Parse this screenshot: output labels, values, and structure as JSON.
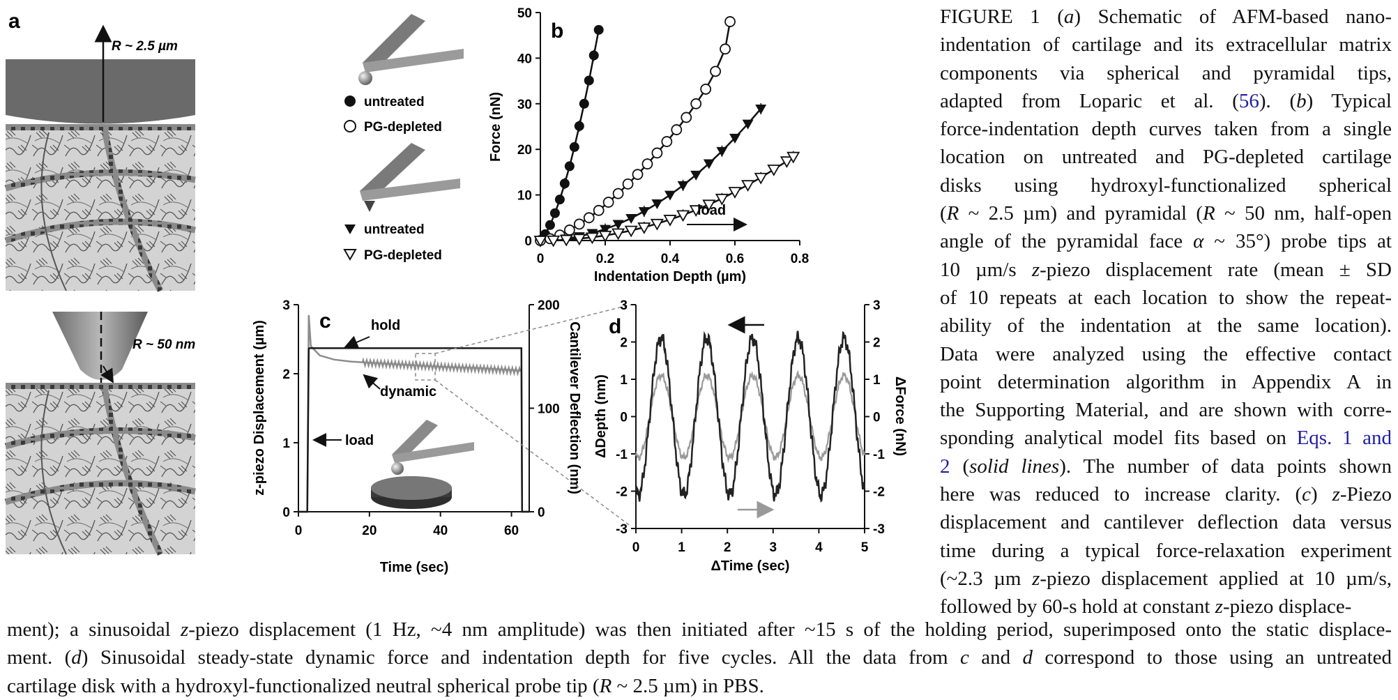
{
  "panels": {
    "a": {
      "label": "a",
      "top_radius": "R ~ 2.5 µm",
      "bottom_radius": "R ~ 50 nm"
    },
    "b": {
      "label": "b",
      "legend": [
        {
          "symbol": "filled-circle",
          "text": "untreated"
        },
        {
          "symbol": "open-circle",
          "text": "PG-depleted"
        },
        {
          "symbol": "filled-triangle",
          "text": "untreated"
        },
        {
          "symbol": "open-triangle",
          "text": "PG-depleted"
        }
      ],
      "annotation": "load"
    },
    "c": {
      "label": "c",
      "annotations": {
        "hold": "hold",
        "dynamic": "dynamic",
        "load": "load"
      }
    },
    "d": {
      "label": "d"
    }
  },
  "chart_data": [
    {
      "id": "b",
      "type": "scatter",
      "xlabel": "Indentation Depth (µm)",
      "ylabel": "Force (nN)",
      "xlim": [
        0,
        0.8
      ],
      "ylim": [
        0,
        50
      ],
      "xticks": [
        "0",
        "0.2",
        "0.4",
        "0.6",
        "0.8"
      ],
      "yticks": [
        "0",
        "10",
        "20",
        "30",
        "40",
        "50"
      ],
      "series": [
        {
          "name": "untreated",
          "marker": "filled-circle",
          "tip": "spherical",
          "x": [
            0,
            0.015,
            0.03,
            0.045,
            0.06,
            0.075,
            0.09,
            0.105,
            0.12,
            0.135,
            0.15,
            0.165,
            0.18
          ],
          "y": [
            0,
            1.4,
            3.4,
            6.0,
            9.0,
            12.5,
            16.3,
            20.5,
            25.1,
            30.0,
            35.1,
            40.6,
            46.2
          ]
        },
        {
          "name": "PG-depleted",
          "marker": "open-circle",
          "tip": "spherical",
          "x": [
            0,
            0.03,
            0.06,
            0.09,
            0.12,
            0.15,
            0.18,
            0.21,
            0.24,
            0.27,
            0.3,
            0.33,
            0.36,
            0.39,
            0.42,
            0.45,
            0.48,
            0.51,
            0.54,
            0.57,
            0.585
          ],
          "y": [
            0,
            0.4,
            1.2,
            2.3,
            3.6,
            5.0,
            6.6,
            8.4,
            10.3,
            12.4,
            14.5,
            16.8,
            19.2,
            21.7,
            24.3,
            27.0,
            30.0,
            33.2,
            37.1,
            42.0,
            48.0
          ]
        },
        {
          "name": "untreated",
          "marker": "filled-triangle",
          "tip": "pyramidal",
          "x": [
            0,
            0.04,
            0.08,
            0.12,
            0.16,
            0.2,
            0.24,
            0.28,
            0.32,
            0.36,
            0.4,
            0.44,
            0.48,
            0.52,
            0.56,
            0.6,
            0.64,
            0.68
          ],
          "y": [
            0,
            0.1,
            0.4,
            0.9,
            1.6,
            2.5,
            3.6,
            4.9,
            6.4,
            8.1,
            10.0,
            12.1,
            14.4,
            16.9,
            19.6,
            22.5,
            25.6,
            28.9
          ]
        },
        {
          "name": "PG-depleted",
          "marker": "open-triangle",
          "tip": "pyramidal",
          "x": [
            0,
            0.04,
            0.08,
            0.12,
            0.16,
            0.2,
            0.24,
            0.28,
            0.32,
            0.36,
            0.4,
            0.44,
            0.48,
            0.52,
            0.56,
            0.6,
            0.64,
            0.68,
            0.72,
            0.76,
            0.78
          ],
          "y": [
            0,
            0.04,
            0.2,
            0.4,
            0.7,
            1.1,
            1.6,
            2.2,
            2.9,
            3.7,
            4.6,
            5.6,
            6.7,
            7.9,
            9.2,
            10.7,
            12.2,
            13.8,
            15.6,
            17.4,
            18.4
          ]
        }
      ]
    },
    {
      "id": "c",
      "type": "line",
      "xlabel": "Time (sec)",
      "ylabel": "z-piezo Displacement (µm)",
      "y2label": "Cantilever Deflection (nm)",
      "xlim": [
        0,
        65
      ],
      "ylim": [
        0,
        3
      ],
      "y2lim": [
        0,
        200
      ],
      "xticks": [
        "0",
        "20",
        "40",
        "60"
      ],
      "yticks": [
        "0",
        "1",
        "2",
        "3"
      ],
      "y2ticks": [
        "0",
        "100",
        "200"
      ],
      "series": [
        {
          "name": "z-piezo displacement",
          "color": "#1a1a1a",
          "x": [
            0,
            2.5,
            2.9,
            3.0,
            62.8,
            63.0,
            65
          ],
          "y": [
            0,
            0,
            2.35,
            2.37,
            2.37,
            0,
            0
          ]
        },
        {
          "name": "cantilever deflection",
          "color": "#8c8c8c",
          "x": [
            0,
            2.5,
            2.9,
            3.5,
            6,
            10,
            15,
            20,
            30,
            40,
            50,
            60,
            62.8,
            63.0,
            65
          ],
          "y2": [
            0,
            0,
            190,
            160,
            151,
            147,
            145,
            144,
            142,
            140,
            139,
            137,
            136,
            0,
            0
          ]
        }
      ]
    },
    {
      "id": "d",
      "type": "line",
      "xlabel": "ΔTime (sec)",
      "ylabel": "ΔDepth (nm)",
      "y2label": "ΔForce (nN)",
      "xlim": [
        0,
        5
      ],
      "ylim": [
        -3,
        3
      ],
      "y2lim": [
        -3,
        3
      ],
      "xticks": [
        "0",
        "1",
        "2",
        "3",
        "4",
        "5"
      ],
      "yticks": [
        "-3",
        "-2",
        "-1",
        "0",
        "1",
        "2",
        "3"
      ],
      "y2ticks": [
        "-3",
        "-2",
        "-1",
        "0",
        "1",
        "2",
        "3"
      ],
      "series": [
        {
          "name": "ΔForce",
          "color": "#222222",
          "axis": "right",
          "amplitude": 2.1,
          "frequency_hz": 1,
          "cycles": 5
        },
        {
          "name": "ΔDepth",
          "color": "#9a9a9a",
          "axis": "left",
          "amplitude": 1.1,
          "frequency_hz": 1,
          "cycles": 5
        }
      ]
    }
  ],
  "caption": {
    "right_lines": [
      "FIGURE 1   (a) Schematic of AFM-based nano-",
      "indentation of cartilage and its extracellular matrix",
      "components via spherical and pyramidal tips,",
      "adapted from Loparic et al. (56). (b) Typical",
      "force-indentation depth curves taken from a single",
      "location on untreated and PG-depleted cartilage",
      "disks using hydroxyl-functionalized spherical",
      "(R ~ 2.5 µm) and pyramidal (R ~ 50 nm, half-open",
      "angle of the pyramidal face α ~ 35°) probe tips at",
      "10 µm/s z-piezo displacement rate (mean ± SD",
      "of 10 repeats at each location to show the repeat-",
      "ability of the indentation at the same location).",
      "Data were analyzed using the effective contact",
      "point determination algorithm in Appendix A in",
      "the Supporting Material, and are shown with corre-",
      "sponding analytical model fits based on Eqs. 1 and",
      "2 (solid lines). The number of data points shown",
      "here was reduced to increase clarity. (c) z-Piezo",
      "displacement and cantilever deflection data versus",
      "time during a typical force-relaxation experiment",
      "(~2.3 µm z-piezo displacement applied at 10 µm/s,",
      "followed by 60-s hold at constant z-piezo displace-"
    ],
    "bottom_lines": [
      "ment); a sinusoidal z-piezo displacement (1 Hz, ~4 nm amplitude) was then initiated after ~15 s of the holding period, superimposed onto the static displace-",
      "ment. (d) Sinusoidal steady-state dynamic force and indentation depth for five cycles. All the data from c and d correspond to those using an untreated",
      "cartilage disk with a hydroxyl-functionalized neutral spherical probe tip (R ~ 2.5 µm) in PBS."
    ]
  }
}
